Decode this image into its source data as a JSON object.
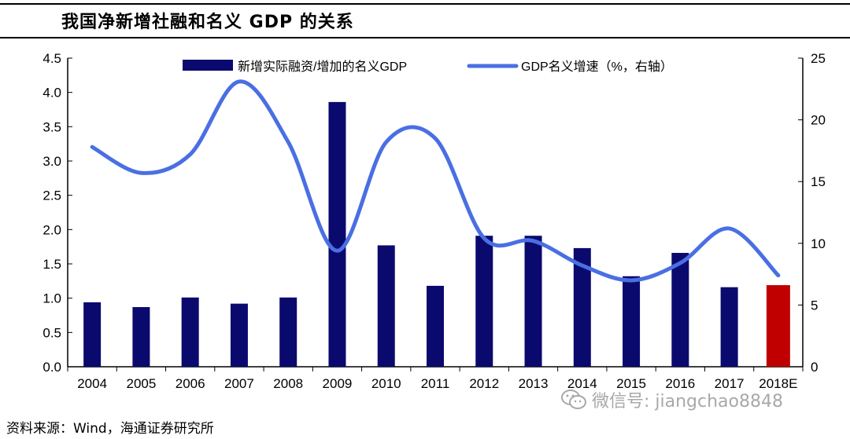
{
  "title": "我国净新增社融和名义 GDP 的关系",
  "source": "资料来源：Wind，海通证券研究所",
  "watermark": "微信号: jiangchao8848",
  "watermark_icon": "wechat-icon",
  "colors": {
    "bar": "#0a0a6e",
    "bar_estimate": "#c00000",
    "line": "#4a6fe3"
  },
  "chart_data": {
    "type": "bar",
    "categories": [
      "2004",
      "2005",
      "2006",
      "2007",
      "2008",
      "2009",
      "2010",
      "2011",
      "2012",
      "2013",
      "2014",
      "2015",
      "2016",
      "2017",
      "2018E"
    ],
    "series": [
      {
        "name": "新增实际融资/增加的名义GDP",
        "type": "bar",
        "axis": "left",
        "values": [
          0.94,
          0.87,
          1.01,
          0.92,
          1.01,
          3.86,
          1.77,
          1.18,
          1.91,
          1.91,
          1.73,
          1.32,
          1.66,
          1.16,
          1.19
        ],
        "highlight_last": true
      },
      {
        "name": "GDP名义增速（%，右轴）",
        "type": "line",
        "axis": "right",
        "values": [
          17.8,
          15.7,
          17.2,
          23.1,
          18.2,
          9.4,
          18.2,
          18.5,
          10.4,
          10.2,
          8.2,
          7.0,
          8.4,
          11.2,
          7.4
        ]
      }
    ],
    "left_axis": {
      "min": 0,
      "max": 4.5,
      "ticks": [
        "0.0",
        "0.5",
        "1.0",
        "1.5",
        "2.0",
        "2.5",
        "3.0",
        "3.5",
        "4.0",
        "4.5"
      ]
    },
    "right_axis": {
      "min": 0,
      "max": 25,
      "ticks": [
        "0",
        "5",
        "10",
        "15",
        "20",
        "25"
      ]
    },
    "grid": false,
    "legend": "top"
  }
}
